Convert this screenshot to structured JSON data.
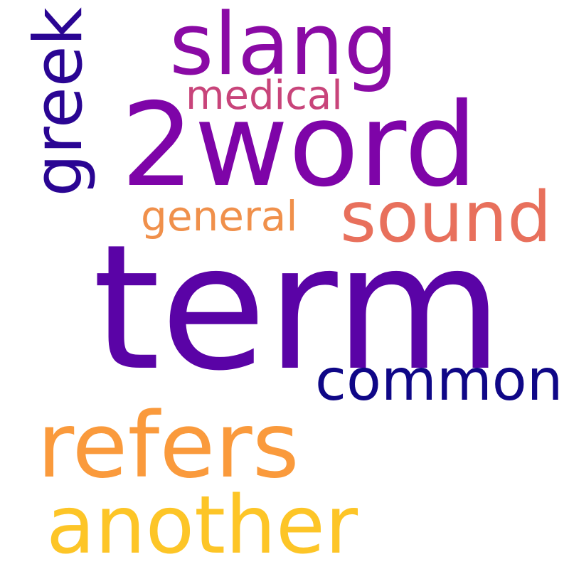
{
  "words": {
    "term": {
      "text": "term",
      "color": "#5a03a6"
    },
    "word2": {
      "text": "2word",
      "color": "#7e04a8"
    },
    "slang": {
      "text": "slang",
      "color": "#8a0aa5"
    },
    "refers": {
      "text": "refers",
      "color": "#fa9a3c"
    },
    "another": {
      "text": "another",
      "color": "#fdc527"
    },
    "sound": {
      "text": "sound",
      "color": "#e8705c"
    },
    "common": {
      "text": "common",
      "color": "#0f0787"
    },
    "medical": {
      "text": "medical",
      "color": "#c8447a"
    },
    "general": {
      "text": "general",
      "color": "#f0904b"
    },
    "greek": {
      "text": "greek",
      "color": "#2a0593"
    }
  }
}
